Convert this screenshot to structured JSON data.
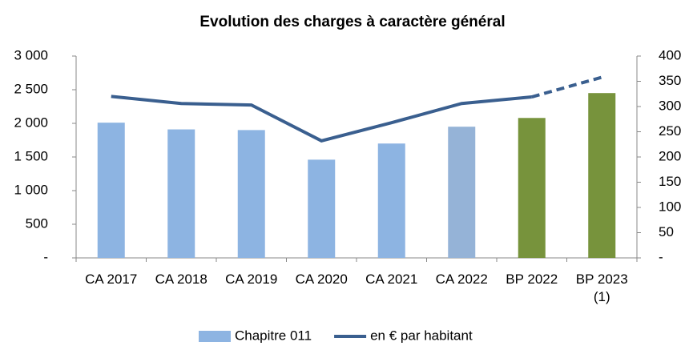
{
  "chart_data": {
    "type": "bar",
    "title": "Evolution des charges à caractère général",
    "categories": [
      "CA 2017",
      "CA 2018",
      "CA 2019",
      "CA 2020",
      "CA 2021",
      "CA 2022",
      "BP 2022",
      "BP 2023 (1)"
    ],
    "series": [
      {
        "name": "Chapitre 011",
        "type": "bar",
        "color": "#8db4e2",
        "colors": [
          "#8db4e2",
          "#8db4e2",
          "#8db4e2",
          "#8db4e2",
          "#8db4e2",
          "#95b3d7",
          "#77933c",
          "#77933c"
        ],
        "values": [
          2010,
          1910,
          1900,
          1460,
          1700,
          1950,
          2080,
          2450
        ]
      },
      {
        "name": "en € par habitant",
        "type": "line",
        "axis": "y2",
        "color": "#3a5f8f",
        "dashed_from": 6,
        "values": [
          320,
          306,
          303,
          232,
          268,
          306,
          319,
          358
        ]
      }
    ],
    "ylim": [
      0,
      3000
    ],
    "yticks": [
      {
        "value": 0,
        "label": "-"
      },
      500,
      {
        "value": 1000,
        "label": "1 000"
      },
      {
        "value": 1500,
        "label": "1 500"
      },
      {
        "value": 2000,
        "label": "2 000"
      },
      {
        "value": 2500,
        "label": "2 500"
      },
      {
        "value": 3000,
        "label": "3 000"
      }
    ],
    "y2lim": [
      0,
      400
    ],
    "y2ticks": [
      {
        "value": 0,
        "label": "-"
      },
      50,
      100,
      150,
      200,
      250,
      300,
      350,
      400
    ],
    "grid": false,
    "legend": "bottom"
  }
}
